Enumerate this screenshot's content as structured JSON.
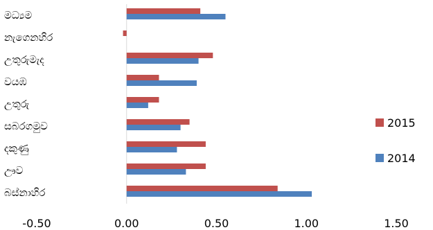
{
  "chart_data": {
    "type": "bar",
    "orientation": "horizontal",
    "categories": [
      "මධ්‍යම",
      "නැගෙනහිර",
      "උතුරුමැද",
      "වයඹ",
      "උතුරු",
      "සබරගමුව",
      "දකුණු",
      "ඌව",
      "බස්නාහිර"
    ],
    "series": [
      {
        "name": "2015",
        "color": "#C0504D",
        "values": [
          0.41,
          -0.02,
          0.48,
          0.18,
          0.18,
          0.35,
          0.44,
          0.44,
          0.84
        ]
      },
      {
        "name": "2014",
        "color": "#4F81BD",
        "values": [
          0.55,
          0.0,
          0.4,
          0.39,
          0.12,
          0.3,
          0.28,
          0.33,
          1.03
        ]
      }
    ],
    "xlim": [
      -0.5,
      1.5
    ],
    "xticks": [
      "-0.50",
      "0.00",
      "0.50",
      "1.00",
      "1.50"
    ],
    "title": "",
    "xlabel": "",
    "ylabel": "",
    "grid": false,
    "legend_position": "right"
  }
}
